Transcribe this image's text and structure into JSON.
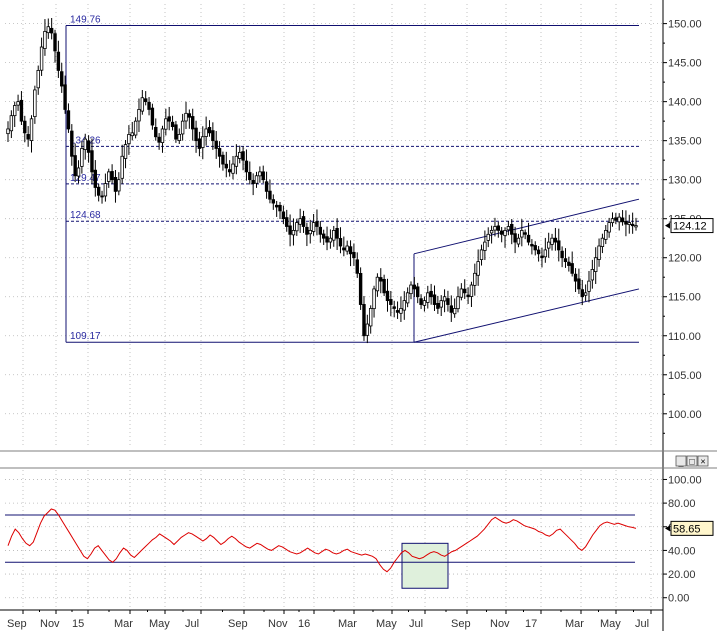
{
  "chart_data": [
    {
      "type": "candlestick",
      "title": "",
      "x_axis_labels": [
        "Sep",
        "Nov",
        "15",
        "Mar",
        "May",
        "Jul",
        "Sep",
        "Nov",
        "16",
        "Mar",
        "May",
        "Jul",
        "Sep",
        "Nov",
        "17",
        "Mar",
        "May",
        "Jul"
      ],
      "y_ticks": [
        "150.00",
        "145.00",
        "140.00",
        "135.00",
        "130.00",
        "125.00",
        "120.00",
        "115.00",
        "110.00",
        "105.00",
        "100.00"
      ],
      "ylim": [
        96,
        152
      ],
      "grid": true,
      "last_price": "124.12",
      "price_weekly": [
        136.5,
        138.2,
        139.5,
        140.0,
        137.5,
        136.0,
        135.2,
        137.8,
        141.5,
        144.0,
        147.0,
        149.0,
        149.6,
        148.8,
        146.5,
        144.0,
        142.0,
        139.0,
        136.5,
        133.0,
        130.5,
        131.5,
        134.0,
        135.2,
        133.5,
        131.0,
        129.0,
        128.0,
        127.8,
        129.5,
        131.0,
        130.0,
        128.5,
        130.0,
        133.0,
        134.5,
        135.8,
        136.0,
        137.5,
        139.0,
        140.5,
        140.0,
        139.0,
        137.0,
        135.5,
        134.8,
        136.5,
        137.8,
        137.5,
        136.8,
        135.2,
        135.8,
        137.5,
        138.5,
        138.0,
        136.5,
        135.0,
        134.0,
        135.5,
        136.5,
        136.0,
        135.0,
        134.0,
        133.0,
        132.0,
        131.5,
        131.0,
        132.0,
        133.0,
        133.5,
        132.5,
        131.0,
        130.0,
        129.5,
        130.5,
        131.0,
        130.0,
        128.5,
        127.5,
        127.0,
        126.5,
        126.0,
        125.0,
        124.0,
        123.0,
        123.5,
        124.5,
        125.0,
        124.0,
        123.0,
        123.5,
        124.5,
        124.0,
        123.0,
        122.5,
        122.0,
        122.5,
        123.5,
        122.5,
        121.5,
        121.0,
        121.5,
        120.5,
        120.0,
        118.0,
        114.0,
        110.0,
        111.5,
        113.5,
        116.0,
        117.5,
        117.0,
        115.5,
        114.5,
        114.0,
        113.5,
        113.0,
        113.5,
        114.5,
        115.5,
        116.5,
        116.0,
        115.0,
        114.0,
        114.5,
        115.5,
        115.0,
        114.0,
        113.5,
        114.5,
        115.0,
        114.0,
        113.0,
        113.5,
        115.0,
        116.0,
        115.5,
        115.0,
        116.5,
        118.0,
        119.5,
        121.0,
        122.0,
        123.0,
        123.5,
        124.0,
        123.5,
        123.0,
        123.5,
        124.0,
        123.0,
        122.0,
        122.5,
        123.5,
        123.0,
        122.0,
        121.5,
        121.0,
        120.5,
        120.0,
        121.0,
        122.0,
        122.5,
        122.0,
        121.0,
        120.0,
        119.5,
        119.0,
        118.0,
        117.0,
        116.0,
        115.0,
        115.5,
        117.0,
        118.5,
        120.0,
        121.5,
        122.5,
        123.5,
        124.5,
        125.0,
        124.8,
        125.2,
        124.6,
        124.3,
        124.5,
        124.1,
        124.12
      ],
      "horizontal_levels": [
        {
          "value": 149.76,
          "label": "149.76",
          "style": "solid"
        },
        {
          "value": 134.26,
          "label": "134.26",
          "style": "dashed"
        },
        {
          "value": 129.47,
          "label": "129.47",
          "style": "dashed"
        },
        {
          "value": 124.68,
          "label": "124.68",
          "style": "dashed"
        },
        {
          "value": 109.17,
          "label": "109.17",
          "style": "solid"
        }
      ],
      "channel": {
        "upper": [
          120.5,
          127.5
        ],
        "lower": [
          109.17,
          116.0
        ]
      }
    },
    {
      "type": "line",
      "title": "",
      "y_ticks": [
        "100.00",
        "80.00",
        "60.00",
        "40.00",
        "20.00",
        "0.00"
      ],
      "ylim": [
        -7,
        108
      ],
      "grid": true,
      "last_value": "58.65",
      "reference_lines": [
        70,
        30
      ],
      "series": [
        {
          "color": "#dd0000",
          "values": [
            44,
            52,
            58,
            55,
            50,
            46,
            44,
            47,
            55,
            63,
            69,
            72,
            75,
            74,
            70,
            65,
            60,
            55,
            50,
            45,
            40,
            35,
            33,
            37,
            42,
            44,
            40,
            36,
            32,
            30,
            33,
            38,
            42,
            40,
            36,
            34,
            37,
            40,
            43,
            46,
            49,
            51,
            54,
            52,
            50,
            48,
            45,
            48,
            51,
            53,
            55,
            54,
            52,
            50,
            48,
            50,
            53,
            51,
            48,
            45,
            47,
            50,
            52,
            50,
            47,
            45,
            43,
            42,
            44,
            46,
            45,
            43,
            41,
            40,
            42,
            44,
            43,
            41,
            39,
            38,
            37,
            38,
            40,
            42,
            40,
            38,
            37,
            39,
            41,
            40,
            38,
            37,
            38,
            40,
            41,
            39,
            38,
            37,
            36,
            37,
            36,
            35,
            33,
            28,
            24,
            22,
            25,
            30,
            34,
            38,
            40,
            38,
            35,
            34,
            33,
            34,
            36,
            38,
            39,
            38,
            36,
            35,
            37,
            39,
            40,
            42,
            44,
            46,
            48,
            50,
            52,
            55,
            58,
            62,
            66,
            68,
            66,
            64,
            63,
            64,
            66,
            65,
            63,
            61,
            60,
            59,
            58,
            56,
            55,
            53,
            52,
            54,
            57,
            58,
            55,
            52,
            49,
            46,
            42,
            40,
            43,
            48,
            53,
            57,
            61,
            63,
            64,
            63,
            62,
            63,
            62,
            61,
            60,
            59.5,
            58.65
          ]
        }
      ]
    }
  ]
}
